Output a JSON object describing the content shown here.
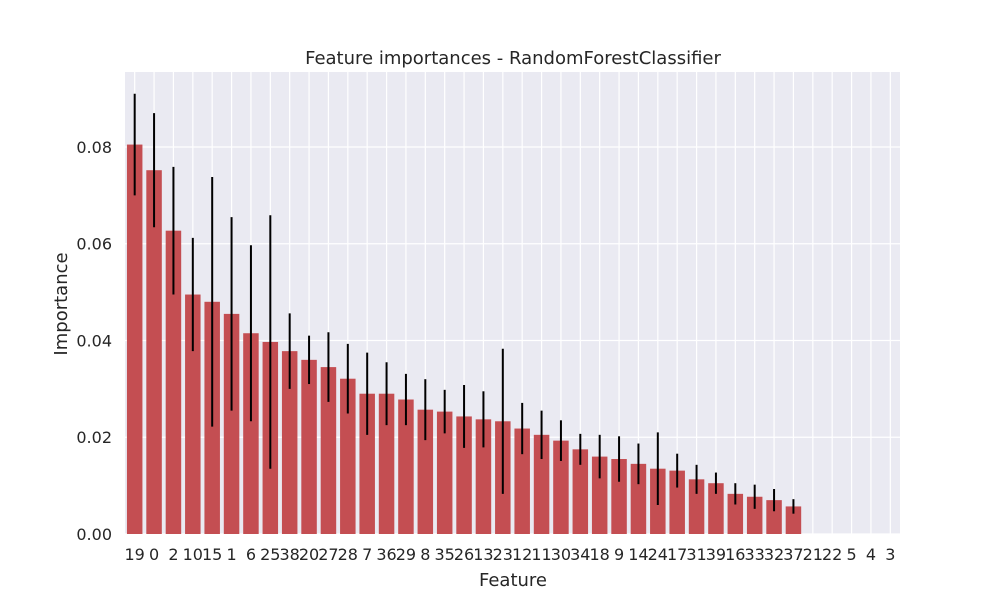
{
  "chart_data": {
    "type": "bar",
    "title": "Feature importances - RandomForestClassifier",
    "xlabel": "Feature",
    "ylabel": "Importance",
    "categories": [
      "19",
      "0",
      "2",
      "10",
      "15",
      "1",
      "6",
      "25",
      "38",
      "20",
      "27",
      "28",
      "7",
      "36",
      "29",
      "8",
      "35",
      "26",
      "13",
      "23",
      "12",
      "11",
      "30",
      "34",
      "18",
      "9",
      "14",
      "24",
      "17",
      "31",
      "39",
      "16",
      "33",
      "32",
      "37",
      "21",
      "22",
      "5",
      "4",
      "3"
    ],
    "values": [
      0.0805,
      0.0752,
      0.0627,
      0.0495,
      0.048,
      0.0455,
      0.0415,
      0.0397,
      0.0378,
      0.036,
      0.0345,
      0.0321,
      0.029,
      0.029,
      0.0278,
      0.0257,
      0.0253,
      0.0243,
      0.0237,
      0.0233,
      0.0218,
      0.0205,
      0.0193,
      0.0175,
      0.016,
      0.0155,
      0.0145,
      0.0135,
      0.0131,
      0.0113,
      0.0105,
      0.0083,
      0.0077,
      0.007,
      0.0057,
      0.0,
      0.0,
      0.0,
      0.0,
      0.0
    ],
    "errors": [
      0.0105,
      0.0118,
      0.0132,
      0.0117,
      0.0258,
      0.02,
      0.0182,
      0.0262,
      0.0078,
      0.005,
      0.0072,
      0.0072,
      0.0085,
      0.0065,
      0.0053,
      0.0063,
      0.0045,
      0.0065,
      0.0058,
      0.015,
      0.0053,
      0.005,
      0.0042,
      0.0032,
      0.0045,
      0.0047,
      0.0042,
      0.0075,
      0.0035,
      0.003,
      0.0022,
      0.0022,
      0.0025,
      0.0023,
      0.0015,
      0.0,
      0.0,
      0.0,
      0.0,
      0.0
    ],
    "ylim": [
      0.0,
      0.0955
    ],
    "yticks": [
      0.0,
      0.02,
      0.04,
      0.06,
      0.08
    ],
    "ytick_labels": [
      "0.00",
      "0.02",
      "0.04",
      "0.06",
      "0.08"
    ],
    "grid": true,
    "colors": {
      "bar": "#c44e52",
      "error": "#000000",
      "plot_bg": "#eaeaf2",
      "grid": "#ffffff",
      "text": "#262626"
    }
  }
}
